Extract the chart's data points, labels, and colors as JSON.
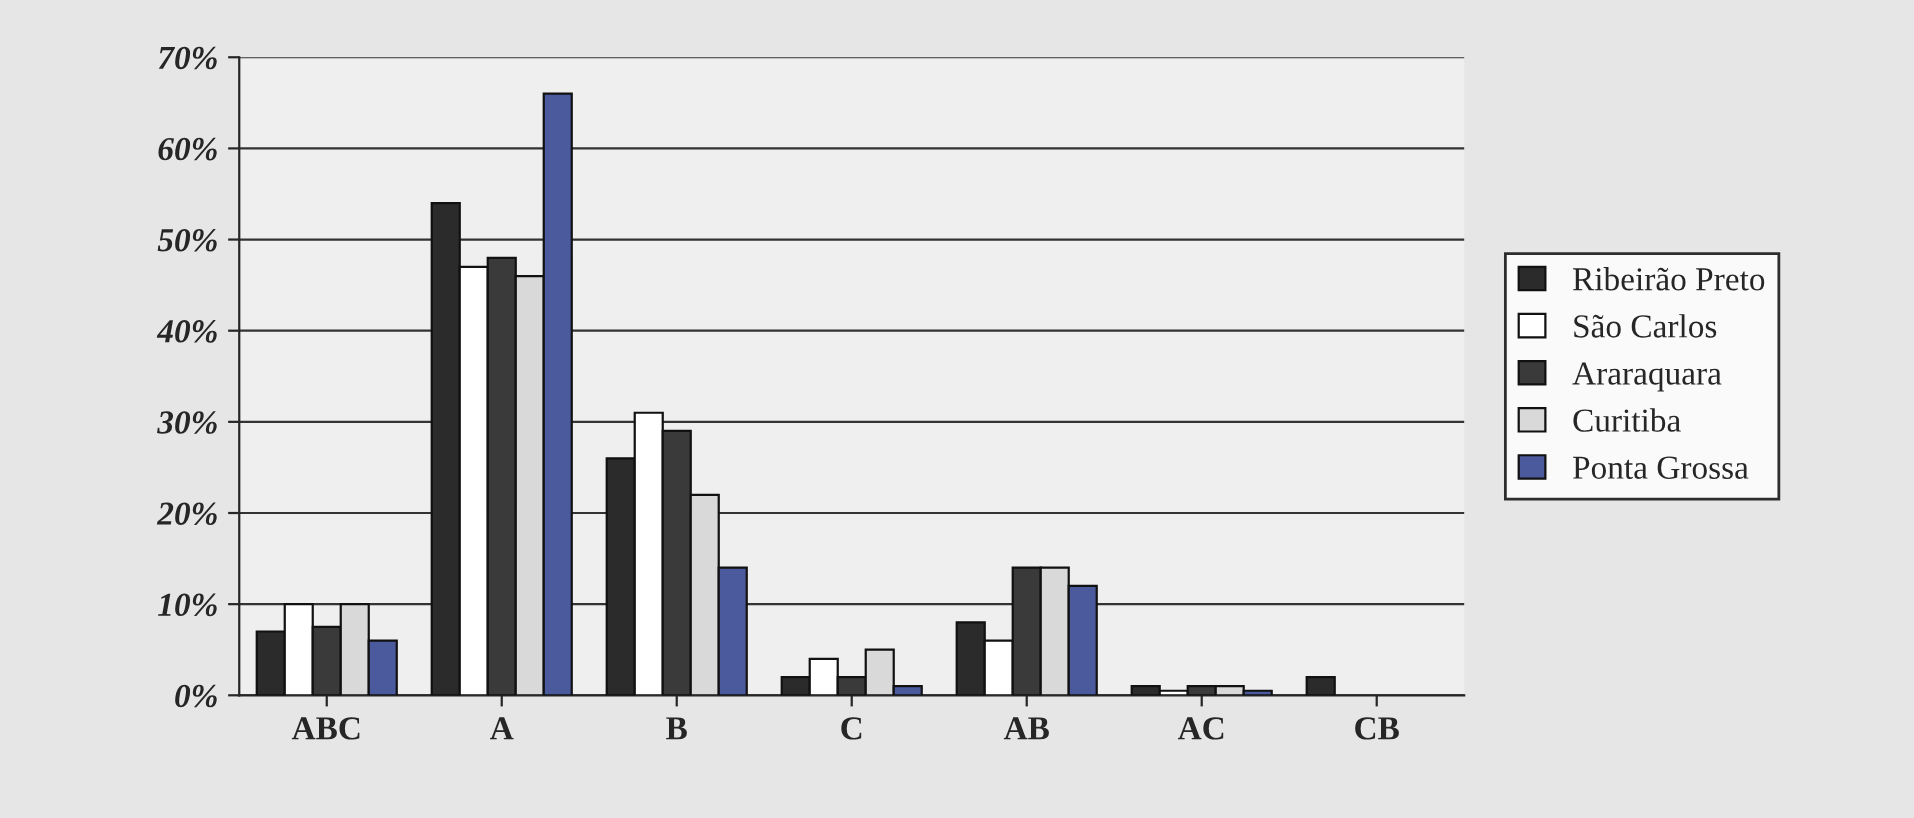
{
  "chart_data": {
    "type": "bar",
    "categories": [
      "ABC",
      "A",
      "B",
      "C",
      "AB",
      "AC",
      "CB"
    ],
    "series": [
      {
        "name": "Ribeirão Preto",
        "color": "#2b2b2b",
        "values": [
          7,
          54,
          26,
          2,
          8,
          1,
          2
        ]
      },
      {
        "name": "São Carlos",
        "color": "#ffffff",
        "values": [
          10,
          47,
          31,
          4,
          6,
          0.5,
          0
        ]
      },
      {
        "name": "Araraquara",
        "color": "#3a3a3a",
        "values": [
          7.5,
          48,
          29,
          2,
          14,
          1,
          0
        ]
      },
      {
        "name": "Curitiba",
        "color": "#d9d9d9",
        "values": [
          10,
          46,
          22,
          5,
          14,
          1,
          0
        ]
      },
      {
        "name": "Ponta Grossa",
        "color": "#4b5a9c",
        "values": [
          6,
          66,
          14,
          1,
          12,
          0.5,
          0
        ]
      }
    ],
    "ylim": [
      0,
      70
    ],
    "yticks": [
      {
        "value": 0,
        "label": "0%"
      },
      {
        "value": 10,
        "label": "10%"
      },
      {
        "value": 20,
        "label": "20%"
      },
      {
        "value": 30,
        "label": "30%"
      },
      {
        "value": 40,
        "label": "40%"
      },
      {
        "value": 50,
        "label": "50%"
      },
      {
        "value": 60,
        "label": "60%"
      },
      {
        "value": 70,
        "label": "70%"
      }
    ],
    "grid": "y",
    "legend": "right"
  }
}
